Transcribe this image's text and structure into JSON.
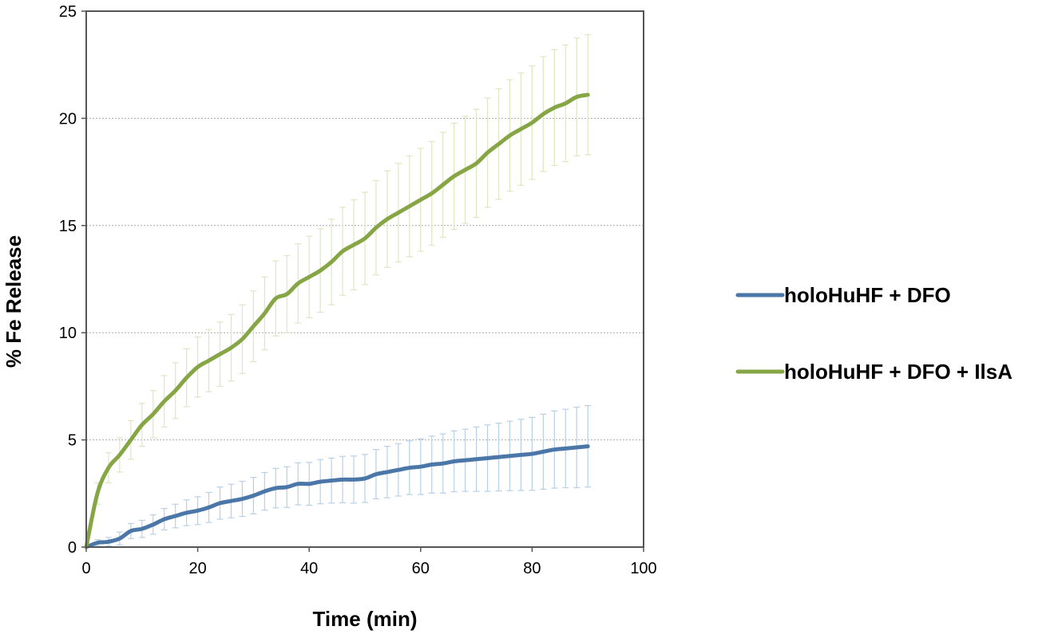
{
  "chart_data": {
    "type": "line",
    "xlabel": "Time (min)",
    "ylabel": "% Fe Release",
    "xlim": [
      0,
      100
    ],
    "ylim": [
      0,
      25
    ],
    "xticks": [
      "0",
      "20",
      "40",
      "60",
      "80",
      "100"
    ],
    "yticks": [
      "0",
      "5",
      "10",
      "15",
      "20",
      "25"
    ],
    "grid": "horizontal dashed",
    "legend_position": "right",
    "series": [
      {
        "name": "holoHuHF + DFO",
        "color": "#4a77a8",
        "error_color": "#b8d0e6",
        "x": [
          0,
          2,
          4,
          6,
          8,
          10,
          12,
          14,
          16,
          18,
          20,
          22,
          24,
          26,
          28,
          30,
          32,
          34,
          36,
          38,
          40,
          42,
          44,
          46,
          48,
          50,
          52,
          54,
          56,
          58,
          60,
          62,
          64,
          66,
          68,
          70,
          72,
          74,
          76,
          78,
          80,
          82,
          84,
          86,
          88,
          90
        ],
        "y": [
          0,
          0.2,
          0.25,
          0.4,
          0.75,
          0.85,
          1.05,
          1.3,
          1.45,
          1.6,
          1.7,
          1.85,
          2.05,
          2.15,
          2.25,
          2.4,
          2.6,
          2.75,
          2.8,
          2.95,
          2.95,
          3.05,
          3.1,
          3.15,
          3.15,
          3.2,
          3.4,
          3.5,
          3.6,
          3.7,
          3.75,
          3.85,
          3.9,
          4.0,
          4.05,
          4.1,
          4.15,
          4.2,
          4.25,
          4.3,
          4.35,
          4.45,
          4.55,
          4.6,
          4.65,
          4.7
        ],
        "error": [
          0,
          0.15,
          0.2,
          0.3,
          0.35,
          0.4,
          0.45,
          0.5,
          0.55,
          0.6,
          0.65,
          0.7,
          0.75,
          0.78,
          0.82,
          0.85,
          0.88,
          0.92,
          0.95,
          0.98,
          1.0,
          1.03,
          1.05,
          1.08,
          1.1,
          1.12,
          1.15,
          1.2,
          1.22,
          1.25,
          1.3,
          1.33,
          1.38,
          1.42,
          1.45,
          1.5,
          1.55,
          1.58,
          1.62,
          1.66,
          1.7,
          1.75,
          1.8,
          1.83,
          1.88,
          1.9
        ]
      },
      {
        "name": "holoHuHF + DFO + IlsA",
        "color": "#86a646",
        "error_color": "#dde7c2",
        "x": [
          0,
          2,
          4,
          6,
          8,
          10,
          12,
          14,
          16,
          18,
          20,
          22,
          24,
          26,
          28,
          30,
          32,
          34,
          36,
          38,
          40,
          42,
          44,
          46,
          48,
          50,
          52,
          54,
          56,
          58,
          60,
          62,
          64,
          66,
          68,
          70,
          72,
          74,
          76,
          78,
          80,
          82,
          84,
          86,
          88,
          90
        ],
        "y": [
          0,
          2.5,
          3.7,
          4.3,
          5.0,
          5.7,
          6.2,
          6.8,
          7.3,
          7.9,
          8.4,
          8.7,
          9.0,
          9.3,
          9.7,
          10.3,
          10.9,
          11.6,
          11.8,
          12.3,
          12.6,
          12.9,
          13.3,
          13.8,
          14.1,
          14.4,
          14.9,
          15.3,
          15.6,
          15.9,
          16.2,
          16.5,
          16.9,
          17.3,
          17.6,
          17.9,
          18.4,
          18.8,
          19.2,
          19.5,
          19.8,
          20.2,
          20.5,
          20.7,
          21.0,
          21.1
        ],
        "error": [
          0,
          0.5,
          0.7,
          0.8,
          0.9,
          1.0,
          1.1,
          1.2,
          1.3,
          1.35,
          1.4,
          1.45,
          1.5,
          1.55,
          1.6,
          1.65,
          1.7,
          1.75,
          1.8,
          1.85,
          1.9,
          1.95,
          2.0,
          2.05,
          2.1,
          2.15,
          2.2,
          2.25,
          2.3,
          2.35,
          2.4,
          2.42,
          2.45,
          2.48,
          2.5,
          2.52,
          2.55,
          2.58,
          2.6,
          2.62,
          2.65,
          2.68,
          2.7,
          2.72,
          2.75,
          2.8
        ]
      }
    ]
  }
}
